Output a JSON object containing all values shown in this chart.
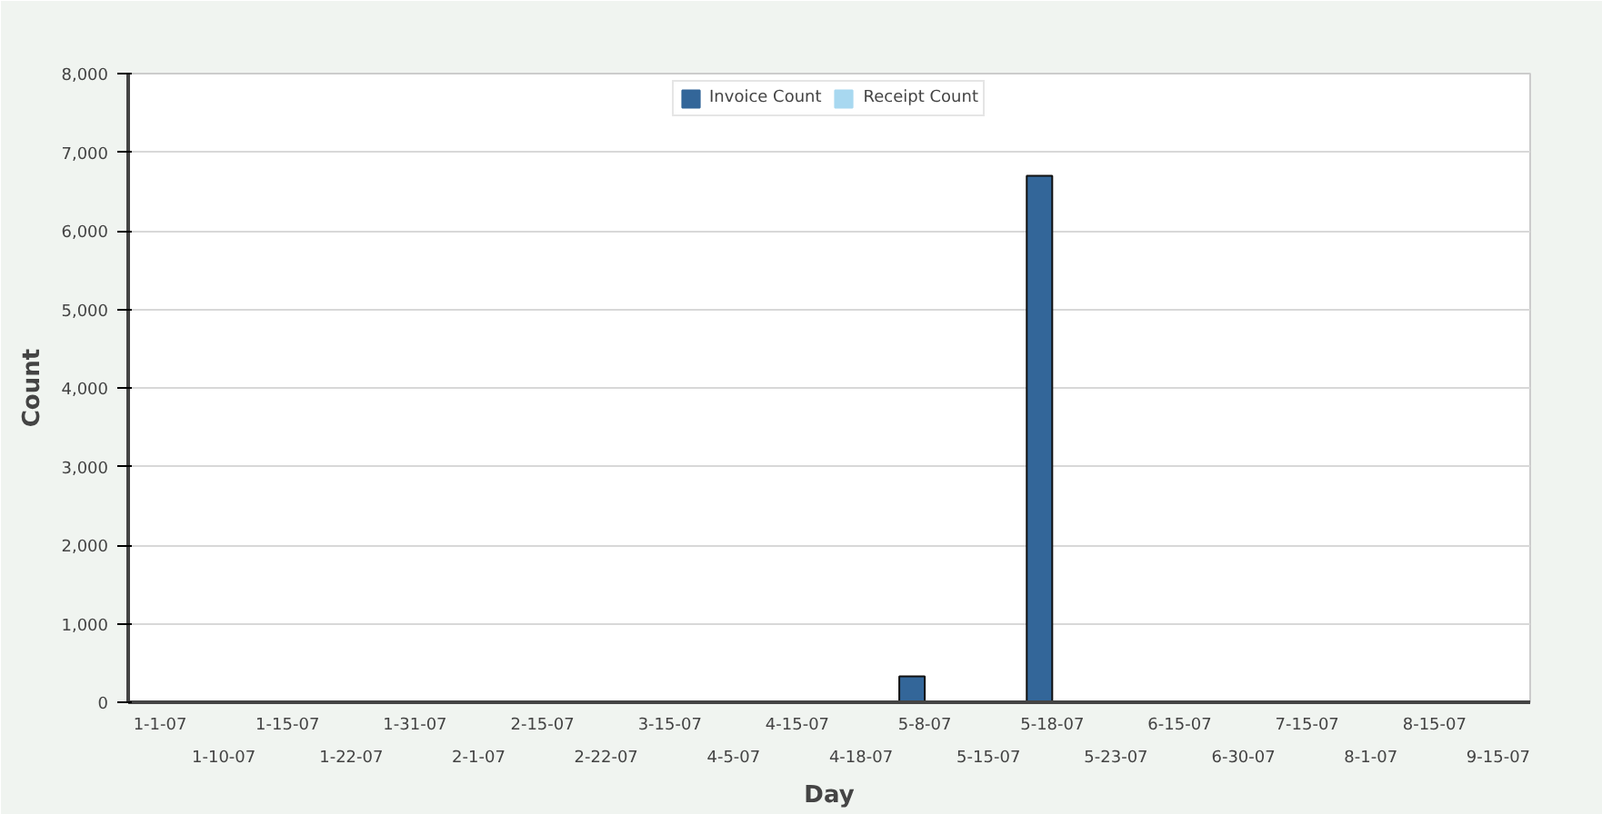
{
  "chart_data": {
    "type": "bar",
    "xlabel": "Day",
    "ylabel": "Count",
    "categories": [
      "1-1-07",
      "1-10-07",
      "1-15-07",
      "1-22-07",
      "1-31-07",
      "2-1-07",
      "2-15-07",
      "2-22-07",
      "3-15-07",
      "4-5-07",
      "4-15-07",
      "4-18-07",
      "5-8-07",
      "5-15-07",
      "5-18-07",
      "5-23-07",
      "6-15-07",
      "6-30-07",
      "7-15-07",
      "8-1-07",
      "8-15-07",
      "9-15-07"
    ],
    "series": [
      {
        "name": "Invoice Count",
        "color": "#336699",
        "values": [
          0,
          0,
          0,
          0,
          0,
          0,
          0,
          0,
          0,
          0,
          0,
          0,
          330,
          0,
          6700,
          0,
          0,
          0,
          0,
          0,
          0,
          0
        ]
      },
      {
        "name": "Receipt Count",
        "color": "#a8d8f0",
        "values": [
          0,
          0,
          0,
          0,
          0,
          0,
          0,
          0,
          0,
          0,
          0,
          0,
          0,
          0,
          0,
          0,
          0,
          0,
          0,
          0,
          0,
          0
        ]
      }
    ],
    "ylim": [
      0,
      8000
    ],
    "yticks": [
      0,
      {
        "value": 1000,
        "label": "1,000"
      },
      {
        "value": 2000,
        "label": "2,000"
      },
      {
        "value": 3000,
        "label": "3,000"
      },
      {
        "value": 4000,
        "label": "4,000"
      },
      {
        "value": 5000,
        "label": "5,000"
      },
      {
        "value": 6000,
        "label": "6,000"
      },
      {
        "value": 7000,
        "label": "7,000"
      },
      {
        "value": 8000,
        "label": "8,000"
      }
    ],
    "grid": "y",
    "legend": "top"
  }
}
